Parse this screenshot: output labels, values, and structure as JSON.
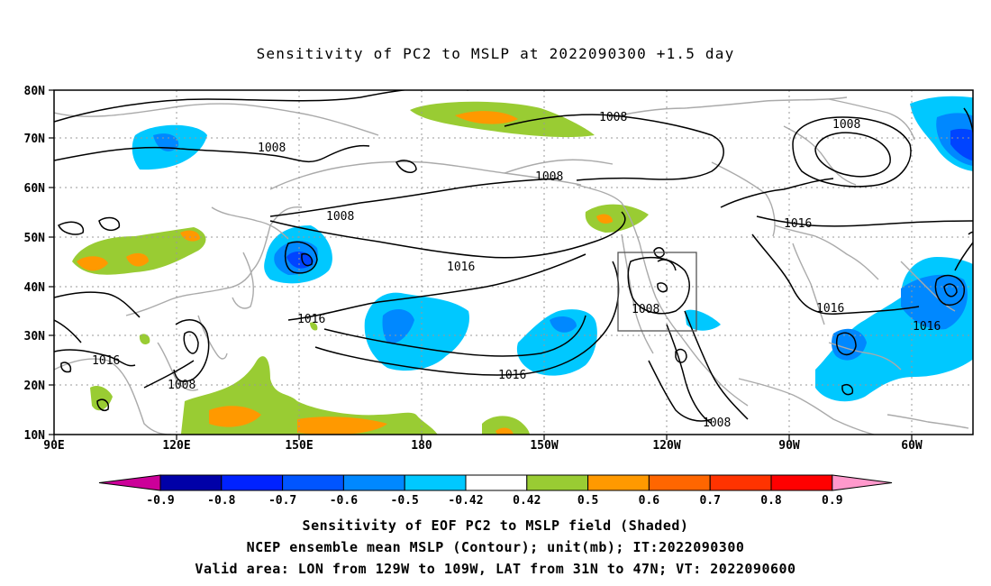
{
  "title": "Sensitivity of PC2 to MSLP at 2022090300 +1.5 day",
  "lat_labels": [
    "80N",
    "70N",
    "60N",
    "50N",
    "40N",
    "30N",
    "20N",
    "10N"
  ],
  "lon_labels": [
    "90E",
    "120E",
    "150E",
    "180",
    "150W",
    "120W",
    "90W",
    "60W"
  ],
  "contour_labels": [
    "1008",
    "1008",
    "1008",
    "1008",
    "1008",
    "1016",
    "1016",
    "1016",
    "1016",
    "1016",
    "1016",
    "1008",
    "1008",
    "1016"
  ],
  "colorbar": {
    "colors": [
      "#0000a8",
      "#0022ff",
      "#0055ff",
      "#0088ff",
      "#00c8ff",
      "#ffffff",
      "#99cc33",
      "#ff9900",
      "#ff6600",
      "#ff3300",
      "#ff0000"
    ],
    "low_arrow_color": "#cc0099",
    "high_arrow_color": "#ff99cc",
    "tick_labels": [
      "-0.9",
      "-0.8",
      "-0.7",
      "-0.6",
      "-0.5",
      "-0.42",
      "0.42",
      "0.5",
      "0.6",
      "0.7",
      "0.8",
      "0.9"
    ]
  },
  "caption": {
    "line1": "Sensitivity of EOF PC2 to MSLP field (Shaded)",
    "line2": "NCEP ensemble mean MSLP (Contour); unit(mb); IT:2022090300",
    "line3": "Valid area: LON from 129W to 109W, LAT from 31N to 47N; VT: 2022090600"
  }
}
